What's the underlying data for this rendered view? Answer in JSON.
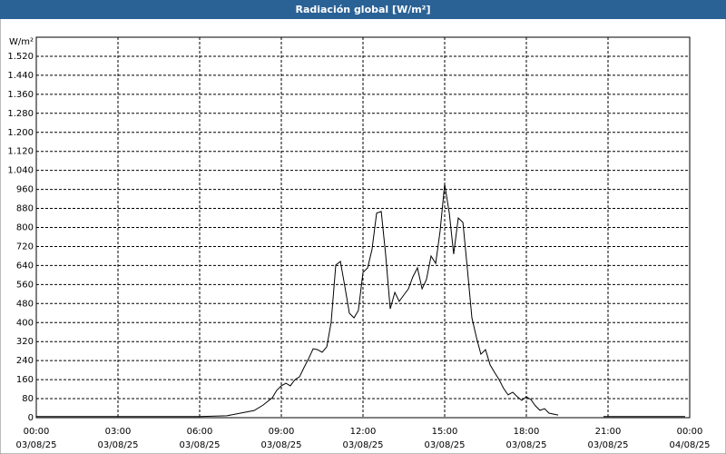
{
  "chart_data": {
    "type": "line",
    "title": "Radiación global [W/m²]",
    "y_label": "W/m²",
    "x": [
      0,
      6,
      7,
      7.5,
      8,
      8.33,
      8.67,
      8.83,
      9,
      9.17,
      9.33,
      9.5,
      9.67,
      9.83,
      10,
      10.17,
      10.33,
      10.5,
      10.67,
      10.83,
      11,
      11.17,
      11.33,
      11.5,
      11.67,
      11.83,
      12,
      12.17,
      12.33,
      12.5,
      12.67,
      12.83,
      13,
      13.17,
      13.33,
      13.5,
      13.67,
      13.83,
      14,
      14.17,
      14.33,
      14.5,
      14.67,
      14.83,
      15,
      15.17,
      15.33,
      15.5,
      15.67,
      15.83,
      16,
      16.17,
      16.33,
      16.5,
      16.67,
      16.83,
      17,
      17.17,
      17.33,
      17.5,
      17.67,
      17.83,
      18,
      18.17,
      18.33,
      18.5,
      18.67,
      18.83,
      19.17,
      19.5,
      20.83,
      23.83
    ],
    "series": [
      {
        "name": "Radiación global",
        "color": "#000000",
        "values": [
          5,
          5,
          8,
          19,
          30,
          53,
          84,
          115,
          134,
          145,
          134,
          160,
          172,
          210,
          248,
          290,
          286,
          275,
          298,
          401,
          642,
          657,
          554,
          439,
          420,
          451,
          611,
          630,
          707,
          860,
          867,
          688,
          458,
          527,
          489,
          516,
          542,
          592,
          630,
          542,
          581,
          680,
          649,
          783,
          982,
          860,
          688,
          840,
          821,
          630,
          420,
          336,
          267,
          286,
          222,
          191,
          160,
          122,
          96,
          107,
          88,
          73,
          88,
          76,
          50,
          31,
          38,
          19,
          11,
          null,
          5,
          5
        ]
      }
    ],
    "xlim": [
      0,
      24
    ],
    "xticks": [
      {
        "value": 0,
        "label": "00:00",
        "date": "03/08/25"
      },
      {
        "value": 3,
        "label": "03:00",
        "date": "03/08/25"
      },
      {
        "value": 6,
        "label": "06:00",
        "date": "03/08/25"
      },
      {
        "value": 9,
        "label": "09:00",
        "date": "03/08/25"
      },
      {
        "value": 12,
        "label": "12:00",
        "date": "03/08/25"
      },
      {
        "value": 15,
        "label": "15:00",
        "date": "03/08/25"
      },
      {
        "value": 18,
        "label": "18:00",
        "date": "03/08/25"
      },
      {
        "value": 21,
        "label": "21:00",
        "date": "03/08/25"
      },
      {
        "value": 24,
        "label": "00:00",
        "date": "04/08/25"
      }
    ],
    "ylim": [
      0,
      1600
    ],
    "yticks": [
      0,
      80,
      160,
      240,
      320,
      400,
      480,
      560,
      640,
      720,
      800,
      880,
      960,
      {
        "value": 1040,
        "label": "1.040"
      },
      {
        "value": 1120,
        "label": "1.120"
      },
      {
        "value": 1200,
        "label": "1.200"
      },
      {
        "value": 1280,
        "label": "1.280"
      },
      {
        "value": 1360,
        "label": "1.360"
      },
      {
        "value": 1440,
        "label": "1.440"
      },
      {
        "value": 1520,
        "label": "1.520"
      }
    ],
    "grid": true
  }
}
